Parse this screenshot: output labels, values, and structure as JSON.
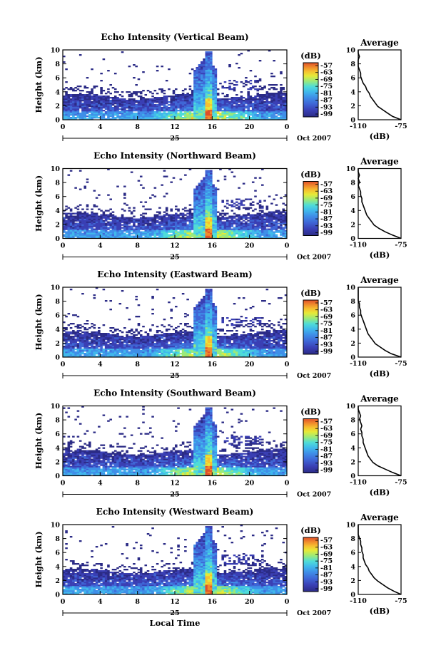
{
  "chart_data": {
    "type": "heatmap",
    "panels": [
      {
        "title": "Echo Intensity (Vertical Beam)",
        "avg_values": [
          -75,
          -82,
          -86,
          -90,
          -94,
          -96,
          -98,
          -100,
          -101,
          -103,
          -104,
          -106,
          -107,
          -108,
          -108,
          -109,
          -110,
          -110,
          -110,
          -109,
          -110,
          -110
        ]
      },
      {
        "title": "Echo Intensity (Northward Beam)",
        "avg_values": [
          -75,
          -82,
          -88,
          -93,
          -97,
          -99,
          -101,
          -103,
          -104,
          -105,
          -106,
          -107,
          -107,
          -108,
          -108,
          -109,
          -110,
          -109,
          -110,
          -109,
          -110,
          -110
        ]
      },
      {
        "title": "Echo Intensity (Eastward Beam)",
        "avg_values": [
          -75,
          -83,
          -88,
          -92,
          -96,
          -98,
          -100,
          -102,
          -103,
          -104,
          -105,
          -106,
          -107,
          -108,
          -108,
          -109,
          -109,
          -110,
          -110,
          -110,
          -110,
          -110
        ]
      },
      {
        "title": "Echo Intensity (Southward Beam)",
        "avg_values": [
          -75,
          -82,
          -88,
          -94,
          -98,
          -100,
          -102,
          -103,
          -104,
          -105,
          -106,
          -106,
          -107,
          -107,
          -108,
          -107,
          -108,
          -109,
          -108,
          -109,
          -110,
          -110
        ]
      },
      {
        "title": "Echo Intensity (Westward Beam)",
        "avg_values": [
          -75,
          -81,
          -86,
          -90,
          -94,
          -97,
          -99,
          -101,
          -102,
          -104,
          -105,
          -106,
          -106,
          -107,
          -107,
          -108,
          -108,
          -109,
          -110,
          -110,
          -110,
          -110
        ]
      }
    ],
    "ylabel": "Height (km)",
    "ylim": [
      0,
      10
    ],
    "y_ticks": [
      "0",
      "2",
      "4",
      "6",
      "8",
      "10"
    ],
    "x_ticks": [
      "0",
      "4",
      "8",
      "12",
      "16",
      "20",
      "0"
    ],
    "xlim": [
      0,
      24
    ],
    "date_day": "25",
    "date_month": "Oct 2007",
    "xlabel": "Local Time",
    "colorbar": {
      "unit": "(dB)",
      "tick_labels": [
        "-57",
        "-63",
        "-69",
        "-75",
        "-81",
        "-87",
        "-93",
        "-99"
      ],
      "colors": [
        "#2b2b86",
        "#3a3fb4",
        "#3f66d6",
        "#3f8fe8",
        "#40b8ec",
        "#4fdcd8",
        "#9bea7a",
        "#e6ea38",
        "#f6c030",
        "#f08a2c",
        "#e0502a"
      ]
    },
    "average": {
      "title": "Average",
      "xlabel": "(dB)",
      "x_tick_labels": [
        "-110",
        "-75"
      ],
      "xlim": [
        -110,
        -75
      ]
    },
    "features": {
      "storm_hours": [
        14,
        16.5
      ],
      "bright_layer_top_km": 3.3
    }
  }
}
